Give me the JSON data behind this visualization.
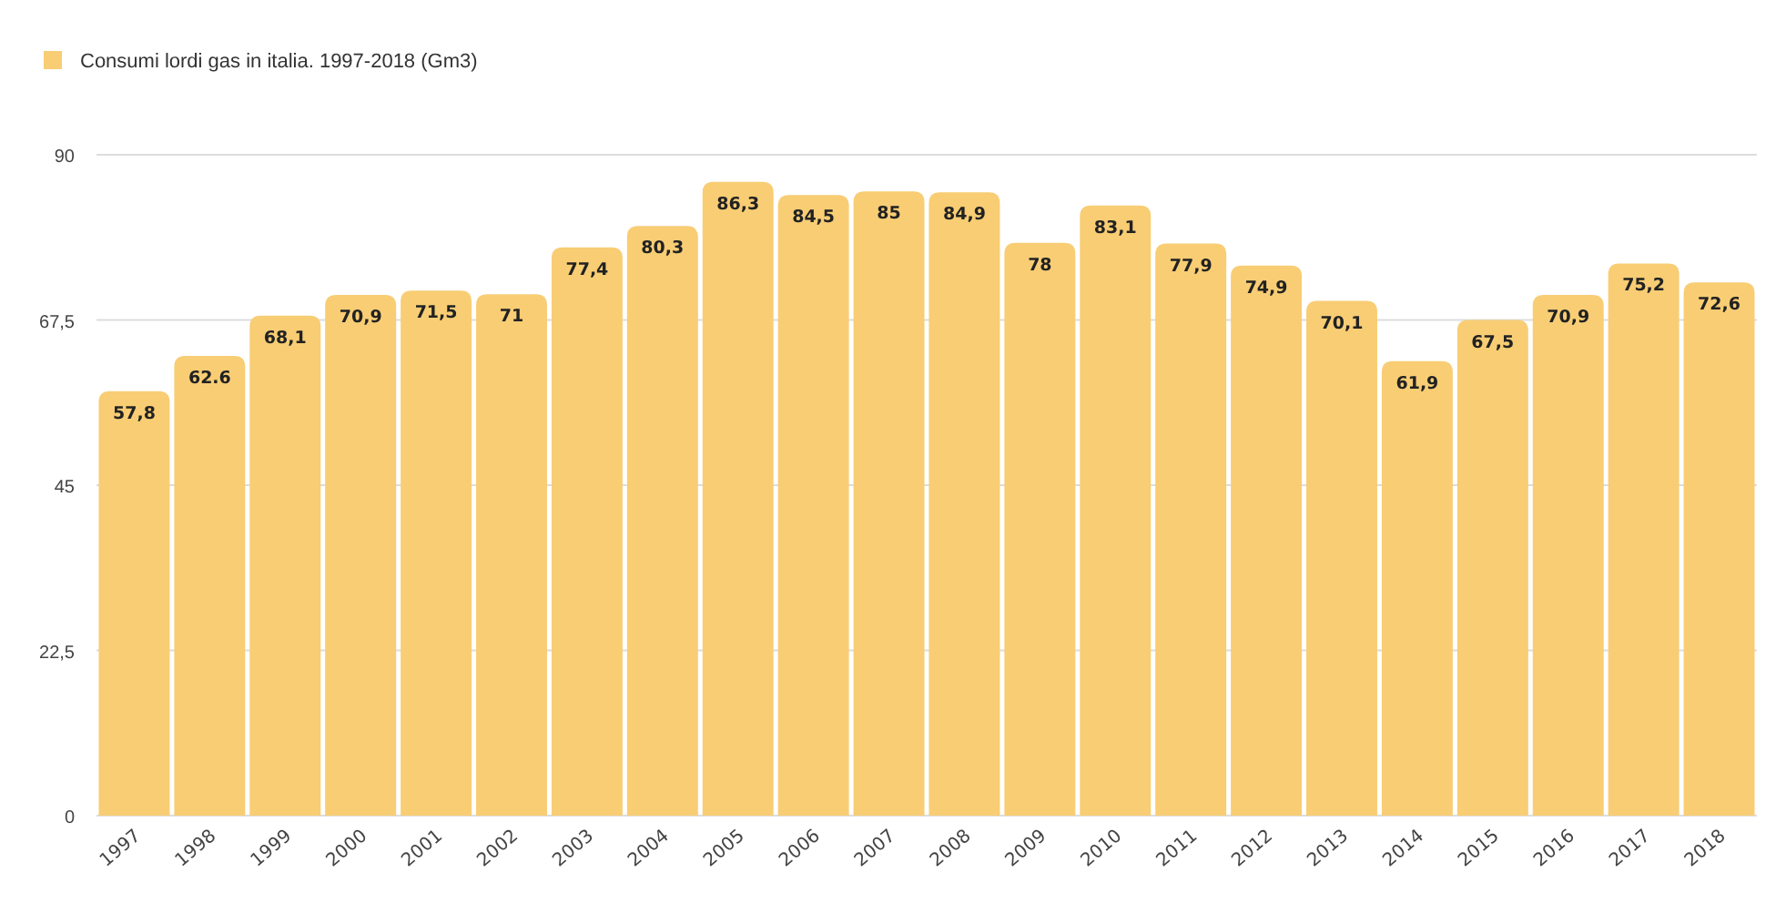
{
  "chart_data": {
    "type": "bar",
    "categories": [
      "1997",
      "1998",
      "1999",
      "2000",
      "2001",
      "2002",
      "2003",
      "2004",
      "2005",
      "2006",
      "2007",
      "2008",
      "2009",
      "2010",
      "2011",
      "2012",
      "2013",
      "2014",
      "2015",
      "2016",
      "2017",
      "2018"
    ],
    "series": [
      {
        "name": "Consumi lordi gas in italia. 1997-2018 (Gm3)",
        "color": "#f8cd74",
        "values": [
          57.8,
          62.6,
          68.1,
          70.9,
          71.5,
          71,
          77.4,
          80.3,
          86.3,
          84.5,
          85,
          84.9,
          78,
          83.1,
          77.9,
          74.9,
          70.1,
          61.9,
          67.5,
          70.9,
          75.2,
          72.6
        ],
        "value_labels": [
          "57,8",
          "62.6",
          "68,1",
          "70,9",
          "71,5",
          "71",
          "77,4",
          "80,3",
          "86,3",
          "84,5",
          "85",
          "84,9",
          "78",
          "83,1",
          "77,9",
          "74,9",
          "70,1",
          "61,9",
          "67,5",
          "70,9",
          "75,2",
          "72,6"
        ]
      }
    ],
    "ylim": [
      0,
      90
    ],
    "yticks": [
      0,
      {
        "value": 22.5,
        "label": "22,5"
      },
      45,
      {
        "value": 67.5,
        "label": "67,5"
      },
      90
    ],
    "grid": "y",
    "legend": "top left"
  }
}
